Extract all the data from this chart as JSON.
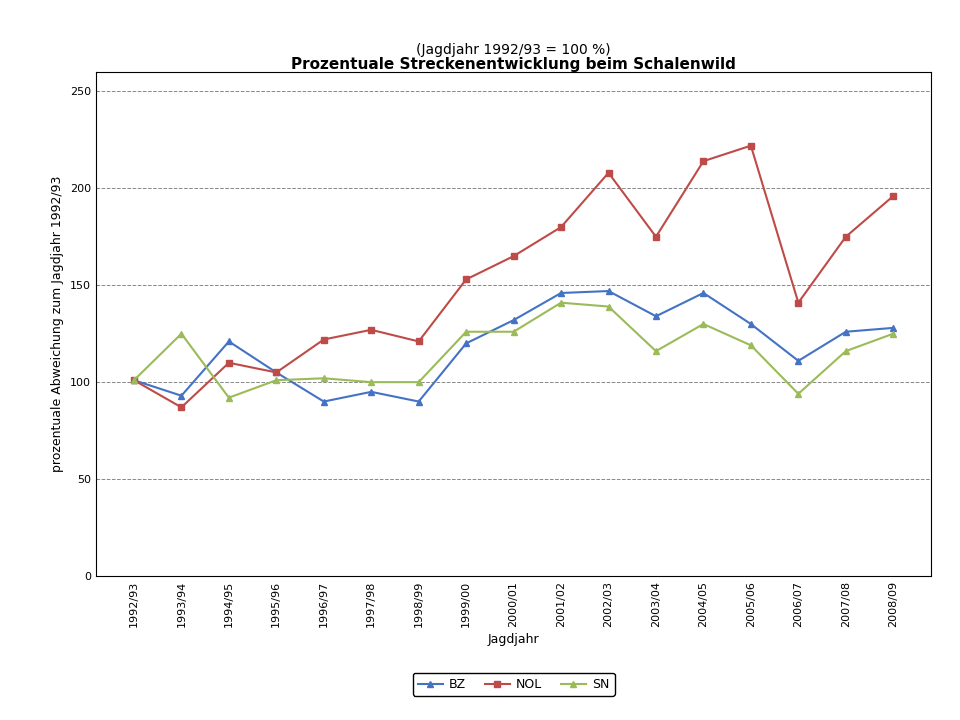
{
  "title_line1": "Prozentuale Streckenentwicklung beim Schalenwild",
  "title_line2": "(Jagdjahr 1992/93 = 100 %)",
  "xlabel": "Jagdjahr",
  "ylabel": "prozentuale Abweichung zum Jagdjahr 1992/93",
  "categories": [
    "1992/93",
    "1993/94",
    "1994/95",
    "1995/96",
    "1996/97",
    "1997/98",
    "1998/99",
    "1999/00",
    "2000/01",
    "2001/02",
    "2002/03",
    "2003/04",
    "2004/05",
    "2005/06",
    "2006/07",
    "2007/08",
    "2008/09"
  ],
  "BZ": [
    101,
    93,
    121,
    105,
    90,
    95,
    90,
    120,
    132,
    146,
    147,
    134,
    146,
    130,
    111,
    126,
    128
  ],
  "NOL": [
    101,
    87,
    110,
    105,
    122,
    127,
    121,
    153,
    165,
    180,
    208,
    175,
    214,
    222,
    141,
    175,
    196
  ],
  "SN": [
    101,
    125,
    92,
    101,
    102,
    100,
    100,
    126,
    126,
    141,
    139,
    116,
    130,
    119,
    94,
    116,
    125
  ],
  "BZ_color": "#4472C4",
  "NOL_color": "#BE4B48",
  "SN_color": "#9BBB59",
  "ylim": [
    0,
    260
  ],
  "yticks": [
    0,
    50,
    100,
    150,
    200,
    250
  ],
  "bg_color": "#FFFFFF",
  "grid_color": "#555555",
  "marker_BZ": "^",
  "marker_NOL": "s",
  "marker_SN": "^",
  "marker_size": 5,
  "linewidth": 1.5,
  "title_fontsize": 11,
  "subtitle_fontsize": 10,
  "label_fontsize": 9,
  "tick_fontsize": 8,
  "legend_fontsize": 9
}
